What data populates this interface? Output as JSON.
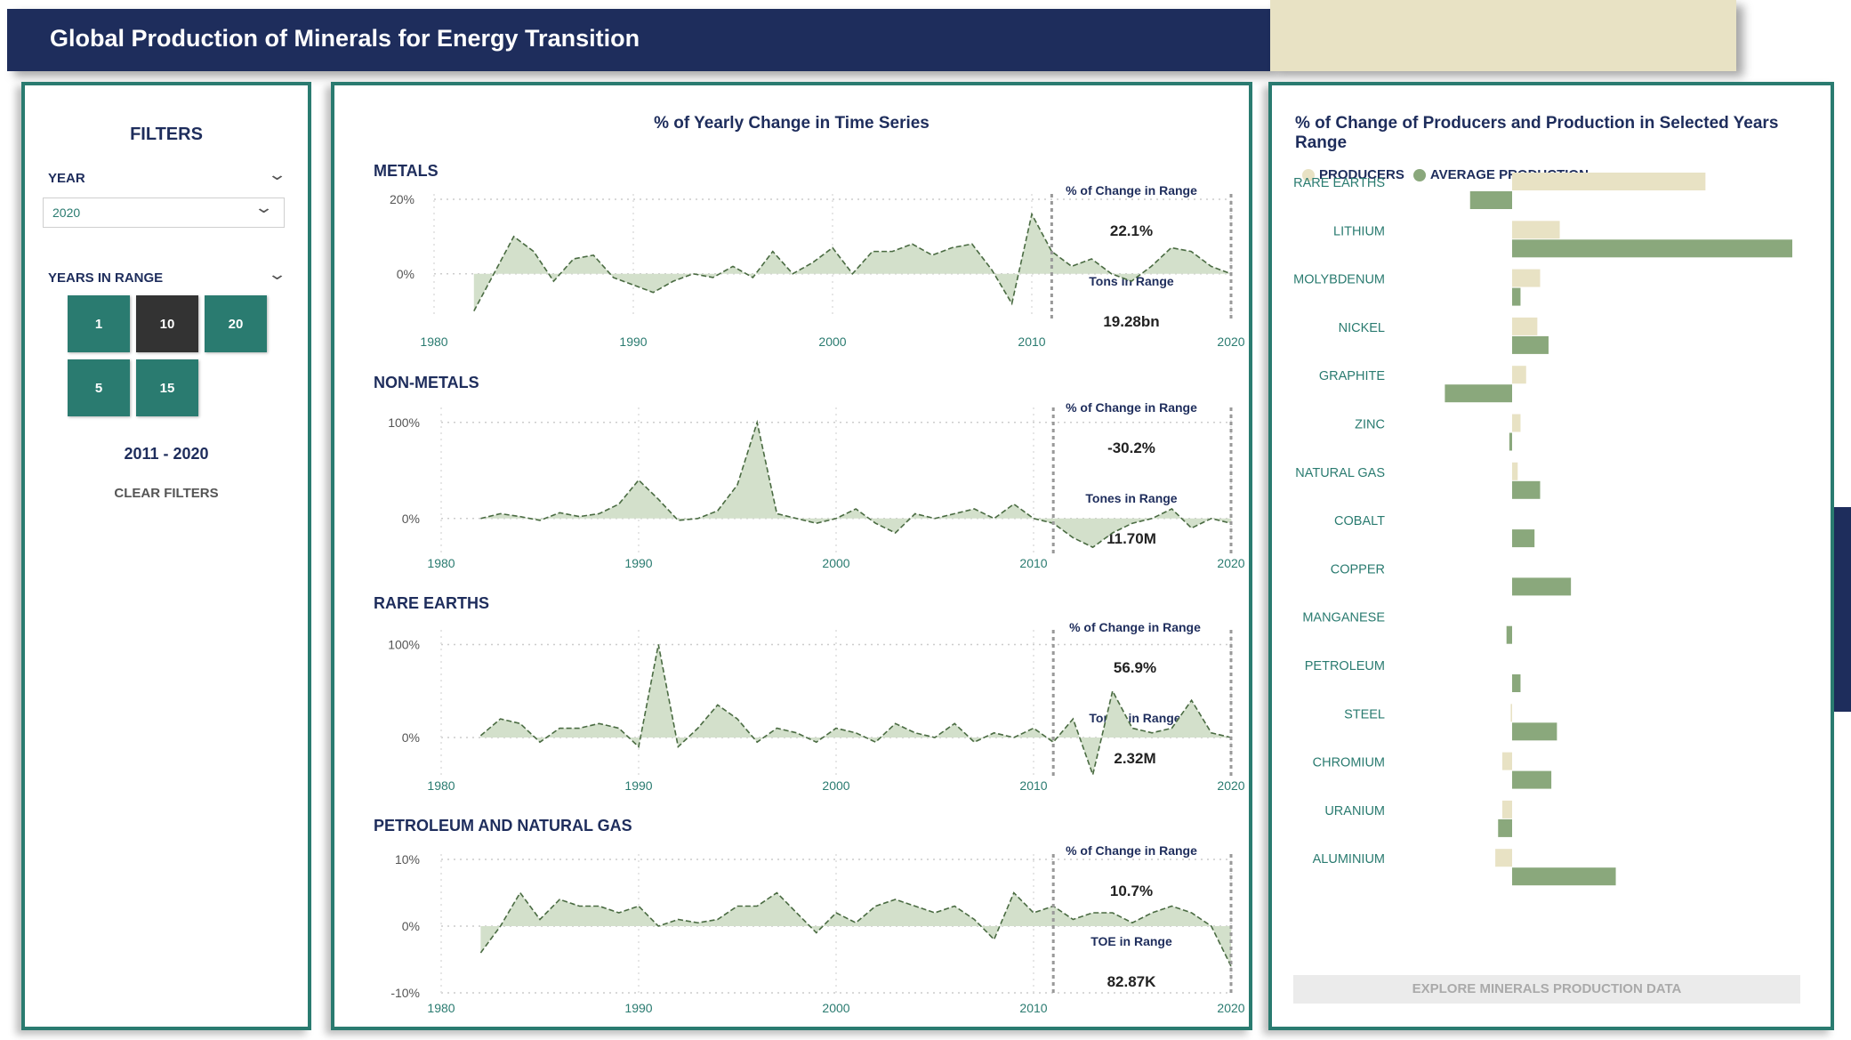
{
  "header": {
    "title": "Global Production of Minerals for Energy Transition"
  },
  "filters": {
    "title": "FILTERS",
    "year_label": "YEAR",
    "year_value": "2020",
    "years_in_range_label": "YEARS IN RANGE",
    "range_options": [
      {
        "label": "1",
        "selected": false
      },
      {
        "label": "10",
        "selected": true
      },
      {
        "label": "20",
        "selected": false
      },
      {
        "label": "5",
        "selected": false
      },
      {
        "label": "15",
        "selected": false
      }
    ],
    "range_text": "2011 - 2020",
    "clear_label": "CLEAR FILTERS"
  },
  "series_panel": {
    "title": "% of Yearly Change in Time Series",
    "charts": [
      {
        "label": "METALS",
        "kpi1_label": "% of Change in Range",
        "kpi1_value": "22.1%",
        "kpi2_label": "Tons in Range",
        "kpi2_value": "19.28bn"
      },
      {
        "label": "NON-METALS",
        "kpi1_label": "% of Change in Range",
        "kpi1_value": "-30.2%",
        "kpi2_label": "Tones in Range",
        "kpi2_value": "11.70M"
      },
      {
        "label": "RARE EARTHS",
        "kpi1_label": "% of Change in Range",
        "kpi1_value": "56.9%",
        "kpi2_label": "Tones in Range",
        "kpi2_value": "2.32M"
      },
      {
        "label": "PETROLEUM AND NATURAL GAS",
        "kpi1_label": "% of Change in Range",
        "kpi1_value": "10.7%",
        "kpi2_label": "TOE in Range",
        "kpi2_value": "82.87K"
      }
    ]
  },
  "bars_panel": {
    "title_prefix": "% of Change of ",
    "title_rest": "Producers and Production in Selected Years Range",
    "legend": [
      {
        "label": "PRODUCERS",
        "color": "#e8e2c4"
      },
      {
        "label": "AVERAGE PRODUCTION",
        "color": "#8aa87c"
      }
    ],
    "explore_label": "EXPLORE MINERALS PRODUCTION DATA"
  },
  "colors": {
    "navy": "#1e2d5c",
    "teal": "#2a7b70",
    "producers": "#e8e2c4",
    "production": "#8aa87c",
    "area_fill": "#d3e0cb",
    "area_line": "#4a6b42",
    "tile_dark": "#333333"
  },
  "chart_data": [
    {
      "type": "area",
      "title": "METALS",
      "x": [
        1982,
        1983,
        1984,
        1985,
        1986,
        1987,
        1988,
        1989,
        1990,
        1991,
        1992,
        1993,
        1994,
        1995,
        1996,
        1997,
        1998,
        1999,
        2000,
        2001,
        2002,
        2003,
        2004,
        2005,
        2006,
        2007,
        2008,
        2009,
        2010,
        2011,
        2012,
        2013,
        2014,
        2015,
        2016,
        2017,
        2018,
        2019,
        2020
      ],
      "y": [
        -10,
        0,
        10,
        6,
        -2,
        4,
        5,
        -1,
        -3,
        -5,
        -2,
        0,
        -1,
        2,
        -1,
        6,
        0,
        3,
        7,
        0,
        6,
        6,
        8,
        5,
        7,
        8,
        1,
        -8,
        16,
        6,
        2,
        4,
        0,
        -2,
        2,
        7,
        6,
        2,
        0
      ],
      "ylim": [
        -12,
        20
      ],
      "yticks": [
        "0%",
        "20%"
      ],
      "ytick_values": [
        0,
        20
      ],
      "xticks": [
        1980,
        1990,
        2000,
        2010,
        2020
      ],
      "ref_lines": [
        2011,
        2020
      ]
    },
    {
      "type": "area",
      "title": "NON-METALS",
      "x": [
        1982,
        1983,
        1984,
        1985,
        1986,
        1987,
        1988,
        1989,
        1990,
        1991,
        1992,
        1993,
        1994,
        1995,
        1996,
        1997,
        1998,
        1999,
        2000,
        2001,
        2002,
        2003,
        2004,
        2005,
        2006,
        2007,
        2008,
        2009,
        2010,
        2011,
        2012,
        2013,
        2014,
        2015,
        2016,
        2017,
        2018,
        2019,
        2020
      ],
      "y": [
        0,
        5,
        2,
        -2,
        6,
        2,
        5,
        15,
        40,
        20,
        -2,
        0,
        8,
        35,
        100,
        5,
        0,
        -5,
        0,
        10,
        -5,
        -15,
        5,
        0,
        5,
        10,
        0,
        15,
        0,
        -5,
        -20,
        -30,
        -15,
        -5,
        0,
        10,
        -10,
        0,
        -5
      ],
      "ylim": [
        -40,
        110
      ],
      "yticks": [
        "0%",
        "100%"
      ],
      "ytick_values": [
        0,
        100
      ],
      "xticks": [
        1980,
        1990,
        2000,
        2010,
        2020
      ],
      "ref_lines": [
        2011,
        2020
      ]
    },
    {
      "type": "area",
      "title": "RARE EARTHS",
      "x": [
        1982,
        1983,
        1984,
        1985,
        1986,
        1987,
        1988,
        1989,
        1990,
        1991,
        1992,
        1993,
        1994,
        1995,
        1996,
        1997,
        1998,
        1999,
        2000,
        2001,
        2002,
        2003,
        2004,
        2005,
        2006,
        2007,
        2008,
        2009,
        2010,
        2011,
        2012,
        2013,
        2014,
        2015,
        2016,
        2017,
        2018,
        2019,
        2020
      ],
      "y": [
        2,
        20,
        15,
        -5,
        10,
        10,
        15,
        10,
        -10,
        100,
        -10,
        10,
        35,
        20,
        -5,
        10,
        5,
        -5,
        10,
        5,
        -5,
        15,
        5,
        0,
        15,
        -5,
        5,
        0,
        10,
        -5,
        20,
        -40,
        50,
        10,
        5,
        10,
        40,
        5,
        0
      ],
      "ylim": [
        -45,
        110
      ],
      "yticks": [
        "0%",
        "100%"
      ],
      "ytick_values": [
        0,
        100
      ],
      "xticks": [
        1980,
        1990,
        2000,
        2010,
        2020
      ],
      "ref_lines": [
        2011,
        2020
      ]
    },
    {
      "type": "area",
      "title": "PETROLEUM AND NATURAL GAS",
      "x": [
        1982,
        1983,
        1984,
        1985,
        1986,
        1987,
        1988,
        1989,
        1990,
        1991,
        1992,
        1993,
        1994,
        1995,
        1996,
        1997,
        1998,
        1999,
        2000,
        2001,
        2002,
        2003,
        2004,
        2005,
        2006,
        2007,
        2008,
        2009,
        2010,
        2011,
        2012,
        2013,
        2014,
        2015,
        2016,
        2017,
        2018,
        2019,
        2020
      ],
      "y": [
        -4,
        0,
        5,
        1,
        4,
        3,
        3,
        2,
        3,
        0,
        1,
        0.5,
        1,
        3,
        3,
        5,
        2,
        -1,
        2,
        0.5,
        3,
        4,
        3,
        2,
        3,
        1,
        -2,
        5,
        2,
        3,
        1,
        2,
        2,
        0.5,
        2,
        3,
        2,
        0,
        -6
      ],
      "ylim": [
        -10,
        10
      ],
      "yticks": [
        "-10%",
        "0%",
        "10%"
      ],
      "ytick_values": [
        -10,
        0,
        10
      ],
      "xticks": [
        1980,
        1990,
        2000,
        2010,
        2020
      ],
      "ref_lines": [
        2011,
        2020
      ]
    },
    {
      "type": "bar",
      "title": "% of Change of Producers and Production in Selected Years Range",
      "categories": [
        "RARE EARTHS",
        "LITHIUM",
        "MOLYBDENUM",
        "NICKEL",
        "GRAPHITE",
        "ZINC",
        "NATURAL GAS",
        "COBALT",
        "COPPER",
        "MANGANESE",
        "PETROLEUM",
        "STEEL",
        "CHROMIUM",
        "URANIUM",
        "ALUMINIUM"
      ],
      "series": [
        {
          "name": "PRODUCERS",
          "values": [
            69,
            17,
            10,
            9,
            5,
            3,
            2,
            0,
            0,
            0,
            0,
            -0.5,
            -3.5,
            -3.5,
            -6
          ]
        },
        {
          "name": "AVERAGE PRODUCTION",
          "values": [
            -15,
            100,
            3,
            13,
            -24,
            -1,
            10,
            8,
            21,
            -2,
            3,
            16,
            14,
            -5,
            37
          ]
        }
      ]
    }
  ]
}
